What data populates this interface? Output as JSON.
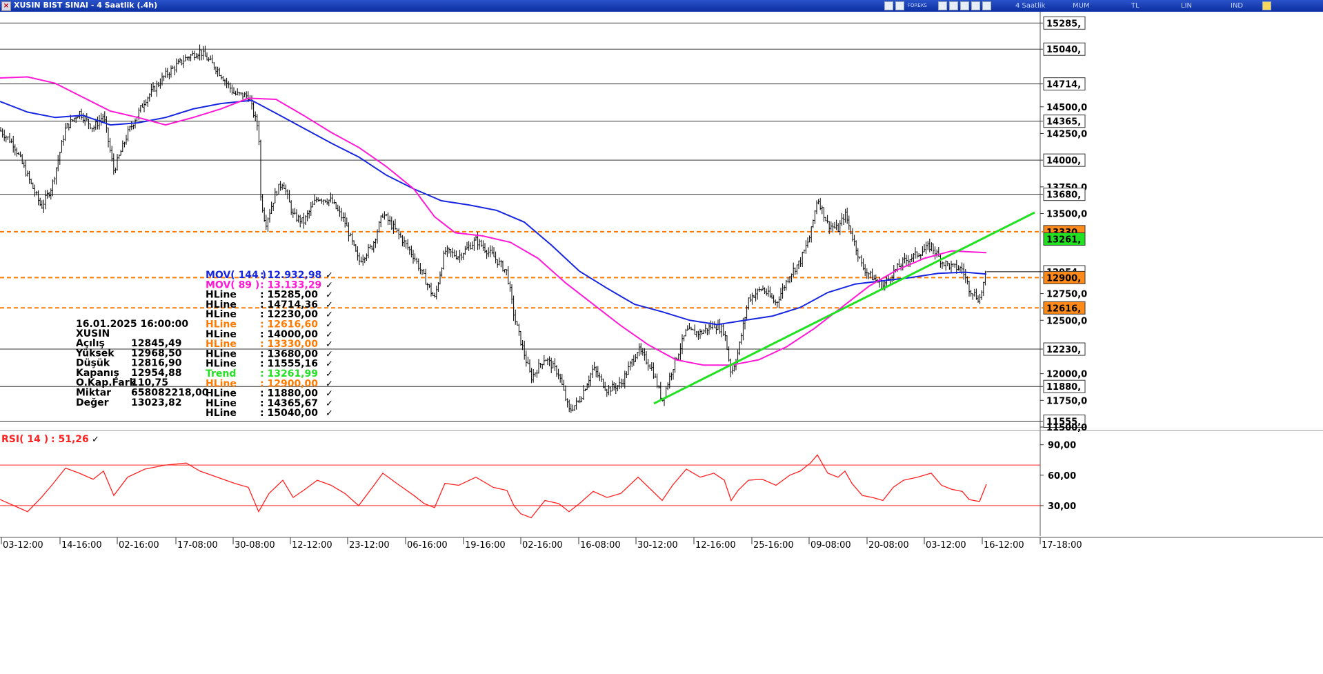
{
  "window": {
    "title": "XUSIN BIST SINAI - 4 Saatlik (.4h)",
    "toolbar": {
      "forex_label": "FOREKS",
      "period": "4 Saatlik",
      "mum": "MUM",
      "tl": "TL",
      "lin": "LIN",
      "ind": "IND"
    }
  },
  "chart_data": {
    "type": "candlestick",
    "y_ticks": [
      "15285,",
      "15040,",
      "14714,",
      "14500,0",
      "14365,",
      "14250,0",
      "14000,",
      "13750,0",
      "13680,",
      "13500,0",
      "13330,",
      "13261,",
      "12954,",
      "12900,",
      "12750,0",
      "12616,",
      "12500,0",
      "12230,",
      "12000,0",
      "11880,",
      "11750,0",
      "11555,",
      "11500,0"
    ],
    "ylim": [
      11500,
      15300
    ],
    "x_ticks": [
      "03-12:00",
      "14-16:00",
      "02-16:00",
      "17-08:00",
      "30-08:00",
      "12-12:00",
      "23-12:00",
      "06-16:00",
      "19-16:00",
      "02-16:00",
      "16-08:00",
      "30-12:00",
      "12-16:00",
      "25-16:00",
      "09-08:00",
      "20-08:00",
      "03-12:00",
      "16-12:00",
      "17-18:00"
    ],
    "price_path": [
      [
        0,
        14280
      ],
      [
        20,
        14150
      ],
      [
        40,
        13850
      ],
      [
        60,
        13560
      ],
      [
        75,
        13750
      ],
      [
        95,
        14300
      ],
      [
        115,
        14450
      ],
      [
        135,
        14300
      ],
      [
        150,
        14420
      ],
      [
        165,
        13900
      ],
      [
        185,
        14250
      ],
      [
        210,
        14560
      ],
      [
        240,
        14800
      ],
      [
        270,
        14960
      ],
      [
        290,
        15020
      ],
      [
        315,
        14850
      ],
      [
        340,
        14620
      ],
      [
        360,
        14600
      ],
      [
        375,
        14280
      ],
      [
        378,
        13650
      ],
      [
        385,
        13400
      ],
      [
        400,
        13700
      ],
      [
        410,
        13800
      ],
      [
        425,
        13480
      ],
      [
        440,
        13420
      ],
      [
        460,
        13650
      ],
      [
        480,
        13620
      ],
      [
        500,
        13420
      ],
      [
        520,
        13050
      ],
      [
        540,
        13200
      ],
      [
        555,
        13500
      ],
      [
        575,
        13330
      ],
      [
        600,
        13100
      ],
      [
        615,
        12900
      ],
      [
        630,
        12700
      ],
      [
        645,
        13150
      ],
      [
        665,
        13100
      ],
      [
        690,
        13250
      ],
      [
        715,
        13100
      ],
      [
        735,
        12950
      ],
      [
        745,
        12550
      ],
      [
        755,
        12300
      ],
      [
        770,
        11960
      ],
      [
        790,
        12150
      ],
      [
        810,
        12000
      ],
      [
        825,
        11650
      ],
      [
        840,
        11750
      ],
      [
        860,
        12050
      ],
      [
        880,
        11850
      ],
      [
        900,
        11900
      ],
      [
        925,
        12230
      ],
      [
        945,
        12050
      ],
      [
        960,
        11750
      ],
      [
        975,
        12050
      ],
      [
        995,
        12400
      ],
      [
        1015,
        12380
      ],
      [
        1035,
        12460
      ],
      [
        1050,
        12400
      ],
      [
        1060,
        12000
      ],
      [
        1070,
        12200
      ],
      [
        1085,
        12700
      ],
      [
        1105,
        12800
      ],
      [
        1125,
        12660
      ],
      [
        1145,
        12930
      ],
      [
        1160,
        13050
      ],
      [
        1175,
        13300
      ],
      [
        1185,
        13650
      ],
      [
        1200,
        13400
      ],
      [
        1215,
        13350
      ],
      [
        1225,
        13500
      ],
      [
        1235,
        13300
      ],
      [
        1250,
        13000
      ],
      [
        1265,
        12900
      ],
      [
        1280,
        12820
      ],
      [
        1295,
        12950
      ],
      [
        1310,
        13050
      ],
      [
        1330,
        13120
      ],
      [
        1350,
        13200
      ],
      [
        1365,
        13050
      ],
      [
        1380,
        13000
      ],
      [
        1395,
        12980
      ],
      [
        1405,
        12800
      ],
      [
        1420,
        12690
      ],
      [
        1430,
        12955
      ]
    ],
    "series": [
      {
        "name": "MOV( 144 )",
        "color": "#1726e0",
        "values": [
          [
            0,
            14550
          ],
          [
            40,
            14450
          ],
          [
            80,
            14400
          ],
          [
            120,
            14420
          ],
          [
            160,
            14330
          ],
          [
            200,
            14350
          ],
          [
            240,
            14400
          ],
          [
            280,
            14480
          ],
          [
            320,
            14530
          ],
          [
            365,
            14560
          ],
          [
            400,
            14440
          ],
          [
            440,
            14300
          ],
          [
            480,
            14160
          ],
          [
            520,
            14030
          ],
          [
            560,
            13860
          ],
          [
            600,
            13730
          ],
          [
            640,
            13620
          ],
          [
            680,
            13580
          ],
          [
            720,
            13530
          ],
          [
            760,
            13420
          ],
          [
            800,
            13200
          ],
          [
            840,
            12960
          ],
          [
            880,
            12800
          ],
          [
            920,
            12650
          ],
          [
            960,
            12580
          ],
          [
            1000,
            12500
          ],
          [
            1040,
            12460
          ],
          [
            1080,
            12500
          ],
          [
            1120,
            12540
          ],
          [
            1160,
            12620
          ],
          [
            1200,
            12760
          ],
          [
            1240,
            12840
          ],
          [
            1280,
            12870
          ],
          [
            1320,
            12900
          ],
          [
            1360,
            12940
          ],
          [
            1400,
            12950
          ],
          [
            1430,
            12933
          ]
        ]
      },
      {
        "name": "MOV( 89 )",
        "color": "#ff18d6",
        "values": [
          [
            0,
            14770
          ],
          [
            40,
            14780
          ],
          [
            80,
            14720
          ],
          [
            120,
            14590
          ],
          [
            160,
            14460
          ],
          [
            200,
            14400
          ],
          [
            240,
            14330
          ],
          [
            280,
            14400
          ],
          [
            320,
            14480
          ],
          [
            360,
            14580
          ],
          [
            400,
            14570
          ],
          [
            440,
            14420
          ],
          [
            480,
            14260
          ],
          [
            520,
            14120
          ],
          [
            560,
            13940
          ],
          [
            600,
            13730
          ],
          [
            630,
            13470
          ],
          [
            660,
            13320
          ],
          [
            700,
            13290
          ],
          [
            740,
            13230
          ],
          [
            780,
            13080
          ],
          [
            820,
            12850
          ],
          [
            860,
            12650
          ],
          [
            900,
            12450
          ],
          [
            940,
            12270
          ],
          [
            980,
            12130
          ],
          [
            1020,
            12080
          ],
          [
            1060,
            12080
          ],
          [
            1100,
            12130
          ],
          [
            1140,
            12250
          ],
          [
            1180,
            12420
          ],
          [
            1220,
            12620
          ],
          [
            1260,
            12820
          ],
          [
            1300,
            12970
          ],
          [
            1340,
            13080
          ],
          [
            1380,
            13150
          ],
          [
            1430,
            13133
          ]
        ]
      }
    ],
    "hlines": [
      {
        "value": 15285,
        "style": "solid",
        "color": "#333333"
      },
      {
        "value": 15040,
        "style": "solid",
        "color": "#333333"
      },
      {
        "value": 14714.36,
        "style": "solid",
        "color": "#333333"
      },
      {
        "value": 14365.67,
        "style": "solid",
        "color": "#333333"
      },
      {
        "value": 14000,
        "style": "solid",
        "color": "#333333"
      },
      {
        "value": 13680,
        "style": "solid",
        "color": "#333333"
      },
      {
        "value": 13330,
        "style": "dashed",
        "color": "#ff7a00"
      },
      {
        "value": 12900,
        "style": "dashed",
        "color": "#ff7a00"
      },
      {
        "value": 12616.6,
        "style": "dashed",
        "color": "#ff7a00"
      },
      {
        "value": 12230,
        "style": "solid",
        "color": "#333333"
      },
      {
        "value": 11880,
        "style": "solid",
        "color": "#333333"
      },
      {
        "value": 11555.16,
        "style": "solid",
        "color": "#333333"
      }
    ],
    "trend": {
      "color": "#22e022",
      "points": [
        [
          948,
          11720
        ],
        [
          1500,
          13510
        ]
      ],
      "value": 13261.99
    },
    "last_price": 12954.88,
    "legend": [
      {
        "name": "MOV( 144 )",
        "value": ": 12.932,98",
        "color": "#1726e0"
      },
      {
        "name": "MOV( 89 )",
        "value": ": 13.133,29",
        "color": "#ff18d6"
      },
      {
        "name": "HLine",
        "value": ": 15285,00",
        "color": "#000000"
      },
      {
        "name": "HLine",
        "value": ": 14714,36",
        "color": "#000000"
      },
      {
        "name": "HLine",
        "value": ": 12230,00",
        "color": "#000000"
      },
      {
        "name": "HLine",
        "value": ": 12616,60",
        "color": "#ff7a00"
      },
      {
        "name": "HLine",
        "value": ": 14000,00",
        "color": "#000000"
      },
      {
        "name": "HLine",
        "value": ": 13330,00",
        "color": "#ff7a00"
      },
      {
        "name": "HLine",
        "value": ": 13680,00",
        "color": "#000000"
      },
      {
        "name": "HLine",
        "value": ": 11555,16",
        "color": "#000000"
      },
      {
        "name": "Trend",
        "value": ": 13261,99",
        "color": "#22e022"
      },
      {
        "name": "HLine",
        "value": ": 12900,00",
        "color": "#ff7a00"
      },
      {
        "name": "HLine",
        "value": ": 11880,00",
        "color": "#000000"
      },
      {
        "name": "HLine",
        "value": ": 14365,67",
        "color": "#000000"
      },
      {
        "name": "HLine",
        "value": ": 15040,00",
        "color": "#000000"
      }
    ],
    "info": {
      "date": "16.01.2025  16:00:00",
      "symbol": "XUSIN",
      "rows": [
        {
          "label": "Açılış",
          "value": "12845,49"
        },
        {
          "label": "Yüksek",
          "value": "12968,50"
        },
        {
          "label": "Düşük",
          "value": "12816,90"
        },
        {
          "label": "Kapanış",
          "value": "12954,88"
        },
        {
          "label": "O.Kap.Fark",
          "value": "110,75"
        },
        {
          "label": "Miktar",
          "value": "658082218,00"
        },
        {
          "label": "Değer",
          "value": "13023,82"
        }
      ]
    },
    "rsi": {
      "label": "RSI( 14 )",
      "value": ": 51,26",
      "color": "#ff2020",
      "levels": [
        70,
        30
      ],
      "y_ticks": [
        "90,00",
        "60,00",
        "30,00"
      ],
      "ylim": [
        0,
        100
      ],
      "values": [
        [
          0,
          36
        ],
        [
          20,
          30
        ],
        [
          40,
          24
        ],
        [
          60,
          38
        ],
        [
          75,
          50
        ],
        [
          95,
          67
        ],
        [
          115,
          62
        ],
        [
          135,
          56
        ],
        [
          150,
          64
        ],
        [
          165,
          40
        ],
        [
          185,
          58
        ],
        [
          210,
          66
        ],
        [
          240,
          70
        ],
        [
          270,
          72
        ],
        [
          290,
          64
        ],
        [
          315,
          58
        ],
        [
          340,
          52
        ],
        [
          360,
          48
        ],
        [
          375,
          24
        ],
        [
          390,
          42
        ],
        [
          410,
          55
        ],
        [
          425,
          38
        ],
        [
          440,
          45
        ],
        [
          460,
          55
        ],
        [
          480,
          50
        ],
        [
          500,
          42
        ],
        [
          520,
          30
        ],
        [
          540,
          48
        ],
        [
          555,
          62
        ],
        [
          575,
          52
        ],
        [
          600,
          40
        ],
        [
          615,
          32
        ],
        [
          630,
          28
        ],
        [
          645,
          52
        ],
        [
          665,
          50
        ],
        [
          690,
          58
        ],
        [
          715,
          48
        ],
        [
          735,
          45
        ],
        [
          745,
          30
        ],
        [
          755,
          22
        ],
        [
          770,
          18
        ],
        [
          790,
          35
        ],
        [
          810,
          32
        ],
        [
          825,
          24
        ],
        [
          840,
          32
        ],
        [
          860,
          44
        ],
        [
          880,
          38
        ],
        [
          900,
          42
        ],
        [
          925,
          58
        ],
        [
          945,
          45
        ],
        [
          960,
          35
        ],
        [
          975,
          50
        ],
        [
          995,
          66
        ],
        [
          1015,
          58
        ],
        [
          1035,
          62
        ],
        [
          1050,
          55
        ],
        [
          1060,
          35
        ],
        [
          1070,
          45
        ],
        [
          1085,
          55
        ],
        [
          1105,
          56
        ],
        [
          1125,
          50
        ],
        [
          1145,
          60
        ],
        [
          1160,
          64
        ],
        [
          1175,
          72
        ],
        [
          1185,
          80
        ],
        [
          1200,
          62
        ],
        [
          1215,
          58
        ],
        [
          1225,
          64
        ],
        [
          1235,
          52
        ],
        [
          1250,
          40
        ],
        [
          1265,
          38
        ],
        [
          1280,
          35
        ],
        [
          1295,
          48
        ],
        [
          1310,
          55
        ],
        [
          1330,
          58
        ],
        [
          1350,
          62
        ],
        [
          1365,
          50
        ],
        [
          1380,
          46
        ],
        [
          1395,
          44
        ],
        [
          1405,
          36
        ],
        [
          1420,
          34
        ],
        [
          1430,
          51
        ]
      ]
    }
  }
}
